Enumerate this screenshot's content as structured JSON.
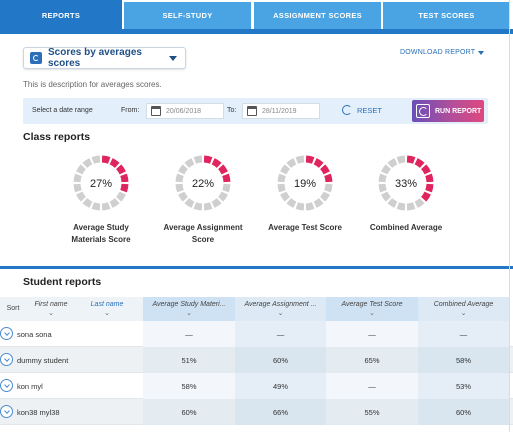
{
  "tabs": [
    {
      "label": "REPORTS",
      "active": true
    },
    {
      "label": "SELF-STUDY",
      "active": false
    },
    {
      "label": "ASSIGNMENT SCORES",
      "active": false
    },
    {
      "label": "TEST SCORES",
      "active": false
    }
  ],
  "header": {
    "dropdown_label": "Scores by averages scores",
    "download_label": "DOWNLOAD REPORT",
    "description": "This is description for averages scores."
  },
  "date_range": {
    "label": "Select a date range",
    "from_label": "From:",
    "from_value": "20/06/2018",
    "to_label": "To:",
    "to_value": "28/11/2019",
    "reset_label": "RESET",
    "run_label": "RUN REPORT"
  },
  "class_reports": {
    "title": "Class reports",
    "items": [
      {
        "pct": 27,
        "label": "27%",
        "caption_line1": "Average Study",
        "caption_line2": "Materials Score"
      },
      {
        "pct": 22,
        "label": "22%",
        "caption_line1": "Average Assignment",
        "caption_line2": "Score"
      },
      {
        "pct": 19,
        "label": "19%",
        "caption_line1": "Average Test Score",
        "caption_line2": ""
      },
      {
        "pct": 33,
        "label": "33%",
        "caption_line1": "Combined Average",
        "caption_line2": ""
      }
    ]
  },
  "student_reports": {
    "title": "Student reports",
    "headers": {
      "sort": "Sort",
      "first_name": "First name",
      "last_name": "Last name",
      "col1": "Average Study Materi...",
      "col2": "Average Assignment ...",
      "col3": "Average Test Score",
      "col4": "Combined Average",
      "chev": "⌄"
    },
    "rows": [
      {
        "name": "sona sona",
        "c1": "—",
        "c2": "—",
        "c3": "—",
        "c4": "—"
      },
      {
        "name": "dummy student",
        "c1": "51%",
        "c2": "60%",
        "c3": "65%",
        "c4": "58%"
      },
      {
        "name": "kon myl",
        "c1": "58%",
        "c2": "49%",
        "c3": "—",
        "c4": "53%"
      },
      {
        "name": "kon38 myl38",
        "c1": "60%",
        "c2": "66%",
        "c3": "55%",
        "c4": "60%"
      }
    ]
  },
  "colors": {
    "tab_active": "#2277c7",
    "tab_inactive": "#4aa3e2",
    "donut_fill": "#e0245e",
    "donut_track": "#cfcfcf"
  }
}
